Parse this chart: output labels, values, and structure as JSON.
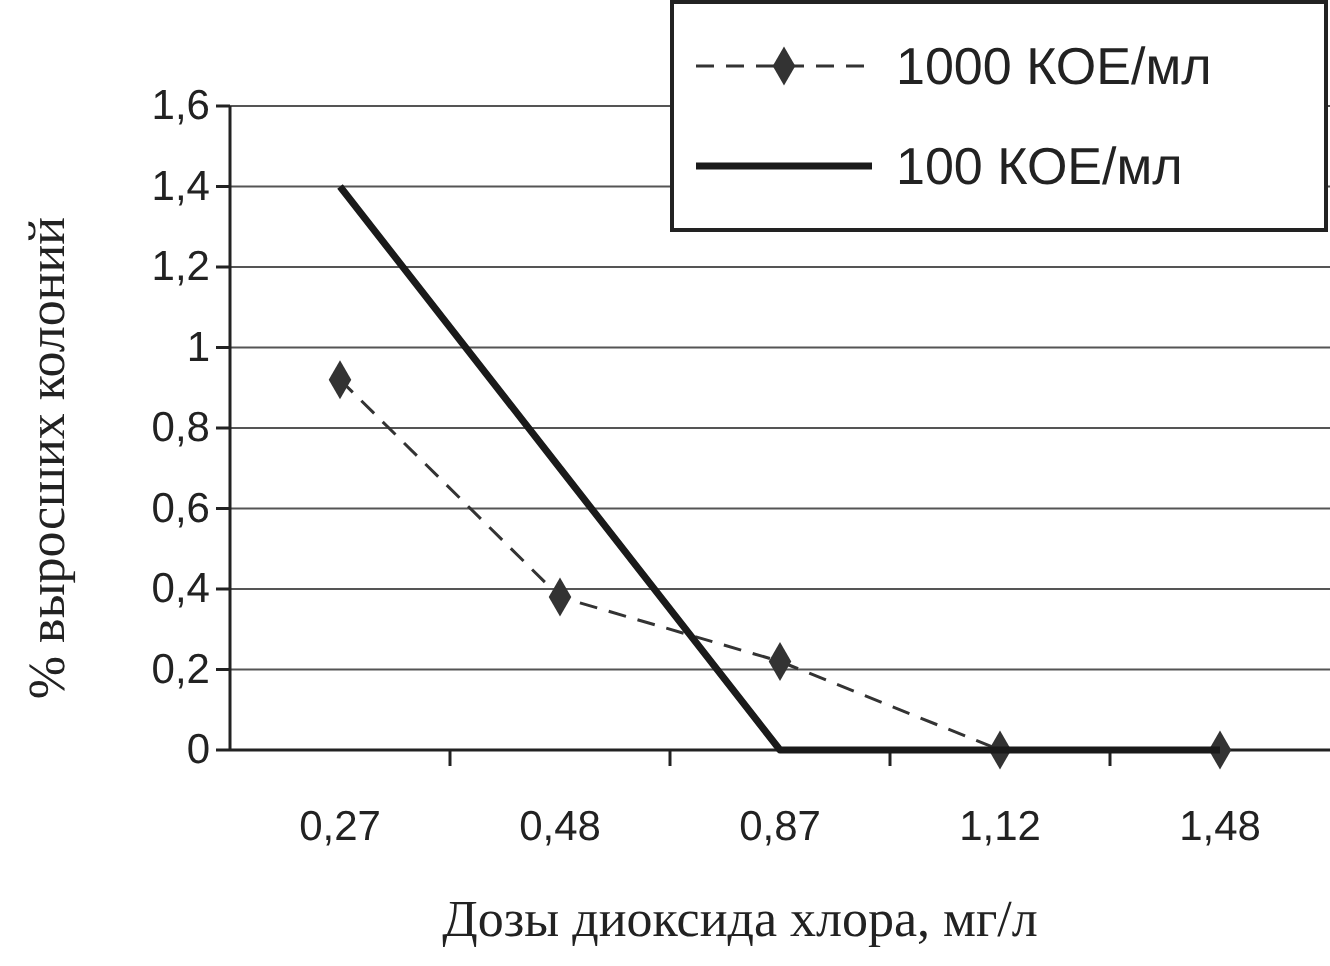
{
  "chart_data": {
    "type": "line",
    "xlabel": "Дозы диоксида хлора, мг/л",
    "ylabel": "% выросших колоний",
    "categories": [
      "0,27",
      "0,48",
      "0,87",
      "1,12",
      "1,48"
    ],
    "series": [
      {
        "name": "1000 КОЕ/мл",
        "color": "#333333",
        "values": [
          0.92,
          0.38,
          0.22,
          0,
          0
        ],
        "marker": "diamond",
        "line_style": "dashed"
      },
      {
        "name": "100 КОЕ/мл",
        "color": "#1a1a1a",
        "values": [
          1.4,
          0.7,
          0,
          0,
          0
        ],
        "marker": "none",
        "line_style": "solid"
      }
    ],
    "ylim": [
      0,
      1.6
    ],
    "yticks": [
      0,
      {
        "value": 0.2,
        "label": "0,2"
      },
      {
        "value": 0.4,
        "label": "0,4"
      },
      {
        "value": 0.6,
        "label": "0,6"
      },
      {
        "value": 0.8,
        "label": "0,8"
      },
      1,
      {
        "value": 1.2,
        "label": "1,2"
      },
      {
        "value": 1.4,
        "label": "1,4"
      },
      {
        "value": 1.6,
        "label": "1,6"
      }
    ],
    "grid": "y",
    "legend": "top right"
  }
}
